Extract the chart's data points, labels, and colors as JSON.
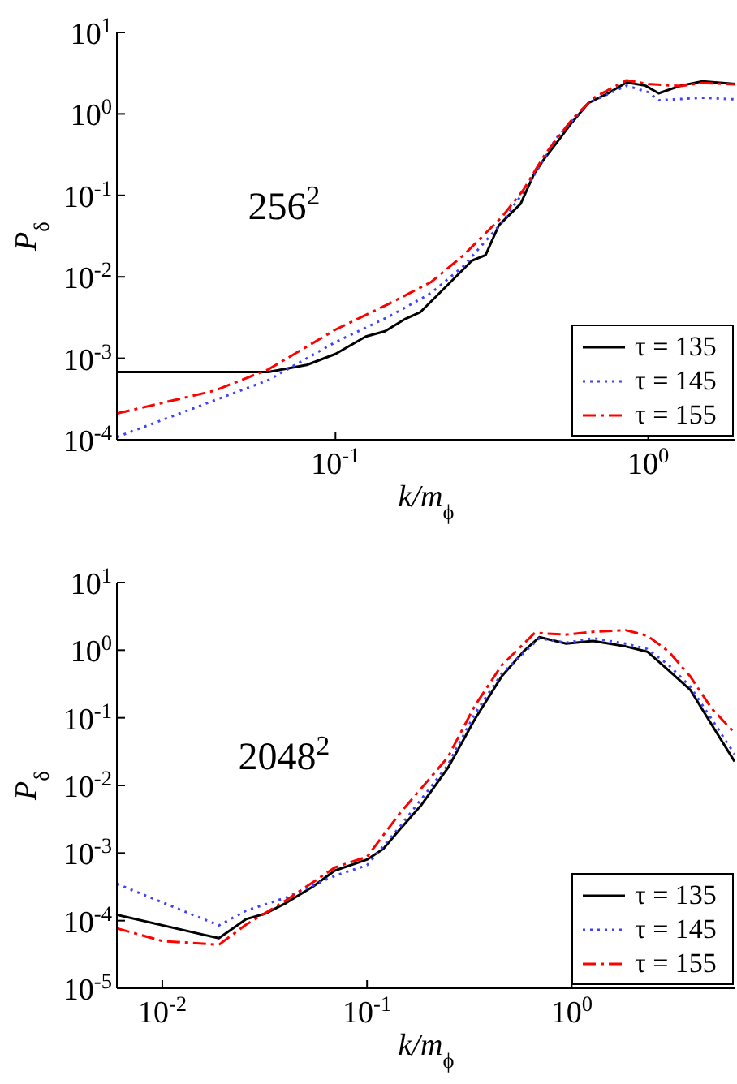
{
  "chart_data": [
    {
      "type": "line",
      "annotations": [
        "256$^{2}$"
      ],
      "xlabel": "k/m$_{ϕ}$",
      "ylabel": "P$_{δ}$",
      "log": "xy",
      "legend": "bottom right",
      "xlim": [
        0.02,
        1.9
      ],
      "xticks": [
        {
          "value": 0.1,
          "label": "10$^{-1}$"
        },
        {
          "value": 1,
          "label": "10$^{0}$"
        }
      ],
      "ylim": [
        0.0001,
        10
      ],
      "yticks": [
        {
          "value": 0.0001,
          "label": "10$^{-4}$"
        },
        {
          "value": 0.001,
          "label": "10$^{-3}$"
        },
        {
          "value": 0.01,
          "label": "10$^{-2}$"
        },
        {
          "value": 0.1,
          "label": "10$^{-1}$"
        },
        {
          "value": 1,
          "label": "10$^{0}$"
        },
        {
          "value": 10,
          "label": "10$^{1}$"
        }
      ],
      "series": [
        {
          "name": "τ = 135",
          "color": "#000000",
          "line_style": "solid",
          "x": [
            0.02,
            0.061,
            0.081,
            0.1,
            0.125,
            0.144,
            0.166,
            0.187,
            0.228,
            0.273,
            0.302,
            0.333,
            0.391,
            0.432,
            0.468,
            0.507,
            0.571,
            0.644,
            0.756,
            0.853,
            0.98,
            1.08,
            1.27,
            1.49,
            1.9
          ],
          "values": [
            0.00068,
            0.00068,
            0.00083,
            0.00113,
            0.00185,
            0.00215,
            0.003,
            0.0037,
            0.0079,
            0.0158,
            0.0185,
            0.043,
            0.079,
            0.185,
            0.29,
            0.43,
            0.79,
            1.36,
            1.85,
            2.44,
            2.22,
            1.79,
            2.22,
            2.51,
            2.33
          ]
        },
        {
          "name": "τ = 145",
          "color": "#4040ff",
          "line_style": "dotted",
          "x": [
            0.02,
            0.061,
            0.1,
            0.147,
            0.202,
            0.257,
            0.34,
            0.415,
            0.507,
            0.644,
            0.853,
            1.0,
            1.08,
            1.49,
            1.9
          ],
          "values": [
            0.000108,
            0.00054,
            0.00158,
            0.0032,
            0.0063,
            0.0136,
            0.046,
            0.136,
            0.5,
            1.36,
            2.22,
            1.85,
            1.47,
            1.58,
            1.51
          ]
        },
        {
          "name": "τ = 155",
          "color": "#ff0000",
          "line_style": "dashed",
          "x": [
            0.02,
            0.041,
            0.061,
            0.1,
            0.147,
            0.202,
            0.257,
            0.34,
            0.399,
            0.468,
            0.571,
            0.67,
            0.853,
            1.0,
            1.27,
            1.49,
            1.9
          ],
          "values": [
            0.00021,
            0.0004,
            0.00073,
            0.00225,
            0.0046,
            0.0086,
            0.0185,
            0.054,
            0.117,
            0.32,
            0.86,
            1.58,
            2.59,
            2.33,
            2.2,
            2.4,
            2.3
          ]
        }
      ]
    },
    {
      "type": "line",
      "annotations": [
        "2048$^{2}$"
      ],
      "xlabel": "k/m$_{ϕ}$",
      "ylabel": "P$_{δ}$",
      "log": "xy",
      "legend": "bottom right",
      "xlim": [
        0.006,
        6.3
      ],
      "xticks": [
        {
          "value": 0.01,
          "label": "10$^{-2}$"
        },
        {
          "value": 0.1,
          "label": "10$^{-1}$"
        },
        {
          "value": 1,
          "label": "10$^{0}$"
        }
      ],
      "ylim": [
        1e-05,
        10
      ],
      "yticks": [
        {
          "value": 1e-05,
          "label": "10$^{-5}$"
        },
        {
          "value": 0.0001,
          "label": "10$^{-4}$"
        },
        {
          "value": 0.001,
          "label": "10$^{-3}$"
        },
        {
          "value": 0.01,
          "label": "10$^{-2}$"
        },
        {
          "value": 0.1,
          "label": "10$^{-1}$"
        },
        {
          "value": 1,
          "label": "10$^{0}$"
        },
        {
          "value": 10,
          "label": "10$^{1}$"
        }
      ],
      "series": [
        {
          "name": "τ = 135",
          "color": "#000000",
          "line_style": "solid",
          "x": [
            0.006,
            0.0189,
            0.0256,
            0.0316,
            0.0403,
            0.0546,
            0.0695,
            0.1,
            0.12,
            0.144,
            0.183,
            0.248,
            0.336,
            0.455,
            0.58,
            0.695,
            0.94,
            1.27,
            1.83,
            2.34,
            2.98,
            3.79,
            4.83,
            6.24
          ],
          "values": [
            0.000122,
            5.5e-05,
            0.000105,
            0.000126,
            0.000183,
            0.00032,
            0.00055,
            0.0008,
            0.00115,
            0.0022,
            0.005,
            0.018,
            0.095,
            0.41,
            0.95,
            1.56,
            1.25,
            1.37,
            1.14,
            0.95,
            0.5,
            0.26,
            0.079,
            0.0226
          ]
        },
        {
          "name": "τ = 145",
          "color": "#4040ff",
          "line_style": "dotted",
          "x": [
            0.006,
            0.0189,
            0.0256,
            0.0403,
            0.0695,
            0.1,
            0.144,
            0.248,
            0.336,
            0.455,
            0.695,
            0.94,
            1.27,
            1.83,
            2.34,
            2.98,
            3.79,
            4.83,
            6.24
          ],
          "values": [
            0.00035,
            8.5e-05,
            0.00014,
            0.00022,
            0.00046,
            0.00066,
            0.0024,
            0.02,
            0.114,
            0.45,
            1.5,
            1.29,
            1.5,
            1.25,
            1.04,
            0.6,
            0.29,
            0.095,
            0.029
          ]
        },
        {
          "name": "τ = 155",
          "color": "#ff0000",
          "line_style": "dashed",
          "x": [
            0.006,
            0.01,
            0.0189,
            0.0256,
            0.0403,
            0.0695,
            0.1,
            0.144,
            0.248,
            0.336,
            0.455,
            0.66,
            0.94,
            1.27,
            1.83,
            2.34,
            2.98,
            3.79,
            4.83,
            6.24
          ],
          "values": [
            7.7e-05,
            5e-05,
            4.4e-05,
            8.7e-05,
            0.0002,
            0.00061,
            0.00088,
            0.0038,
            0.026,
            0.15,
            0.6,
            1.8,
            1.7,
            1.87,
            1.98,
            1.64,
            0.95,
            0.41,
            0.137,
            0.06
          ]
        }
      ]
    }
  ]
}
